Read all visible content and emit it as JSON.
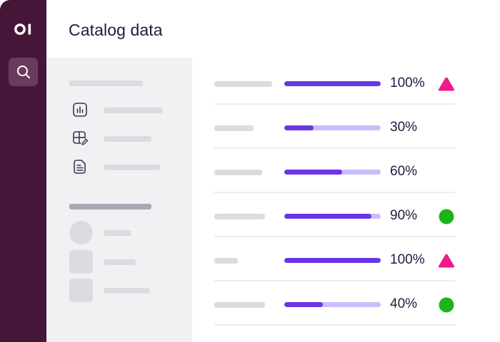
{
  "app": {
    "logo_text": "OI",
    "title": "Catalog data"
  },
  "rail": {
    "search_icon": "search-icon"
  },
  "sidebar": {
    "nav_icons": [
      "chart-icon",
      "table-edit-icon",
      "document-icon"
    ]
  },
  "rows": [
    {
      "value": "100%",
      "progress": 1.0,
      "status": "warning-triangle"
    },
    {
      "value": "30%",
      "progress": 0.3,
      "status": "none"
    },
    {
      "value": "60%",
      "progress": 0.6,
      "status": "none"
    },
    {
      "value": "90%",
      "progress": 0.9,
      "status": "ok-circle"
    },
    {
      "value": "100%",
      "progress": 1.0,
      "status": "warning-triangle"
    },
    {
      "value": "40%",
      "progress": 0.4,
      "status": "ok-circle"
    }
  ],
  "colors": {
    "rail": "#461638",
    "progress_fill": "#6a35e6",
    "progress_track": "#cbbdfa",
    "warning": "#ee1b8a",
    "ok": "#1db319"
  }
}
